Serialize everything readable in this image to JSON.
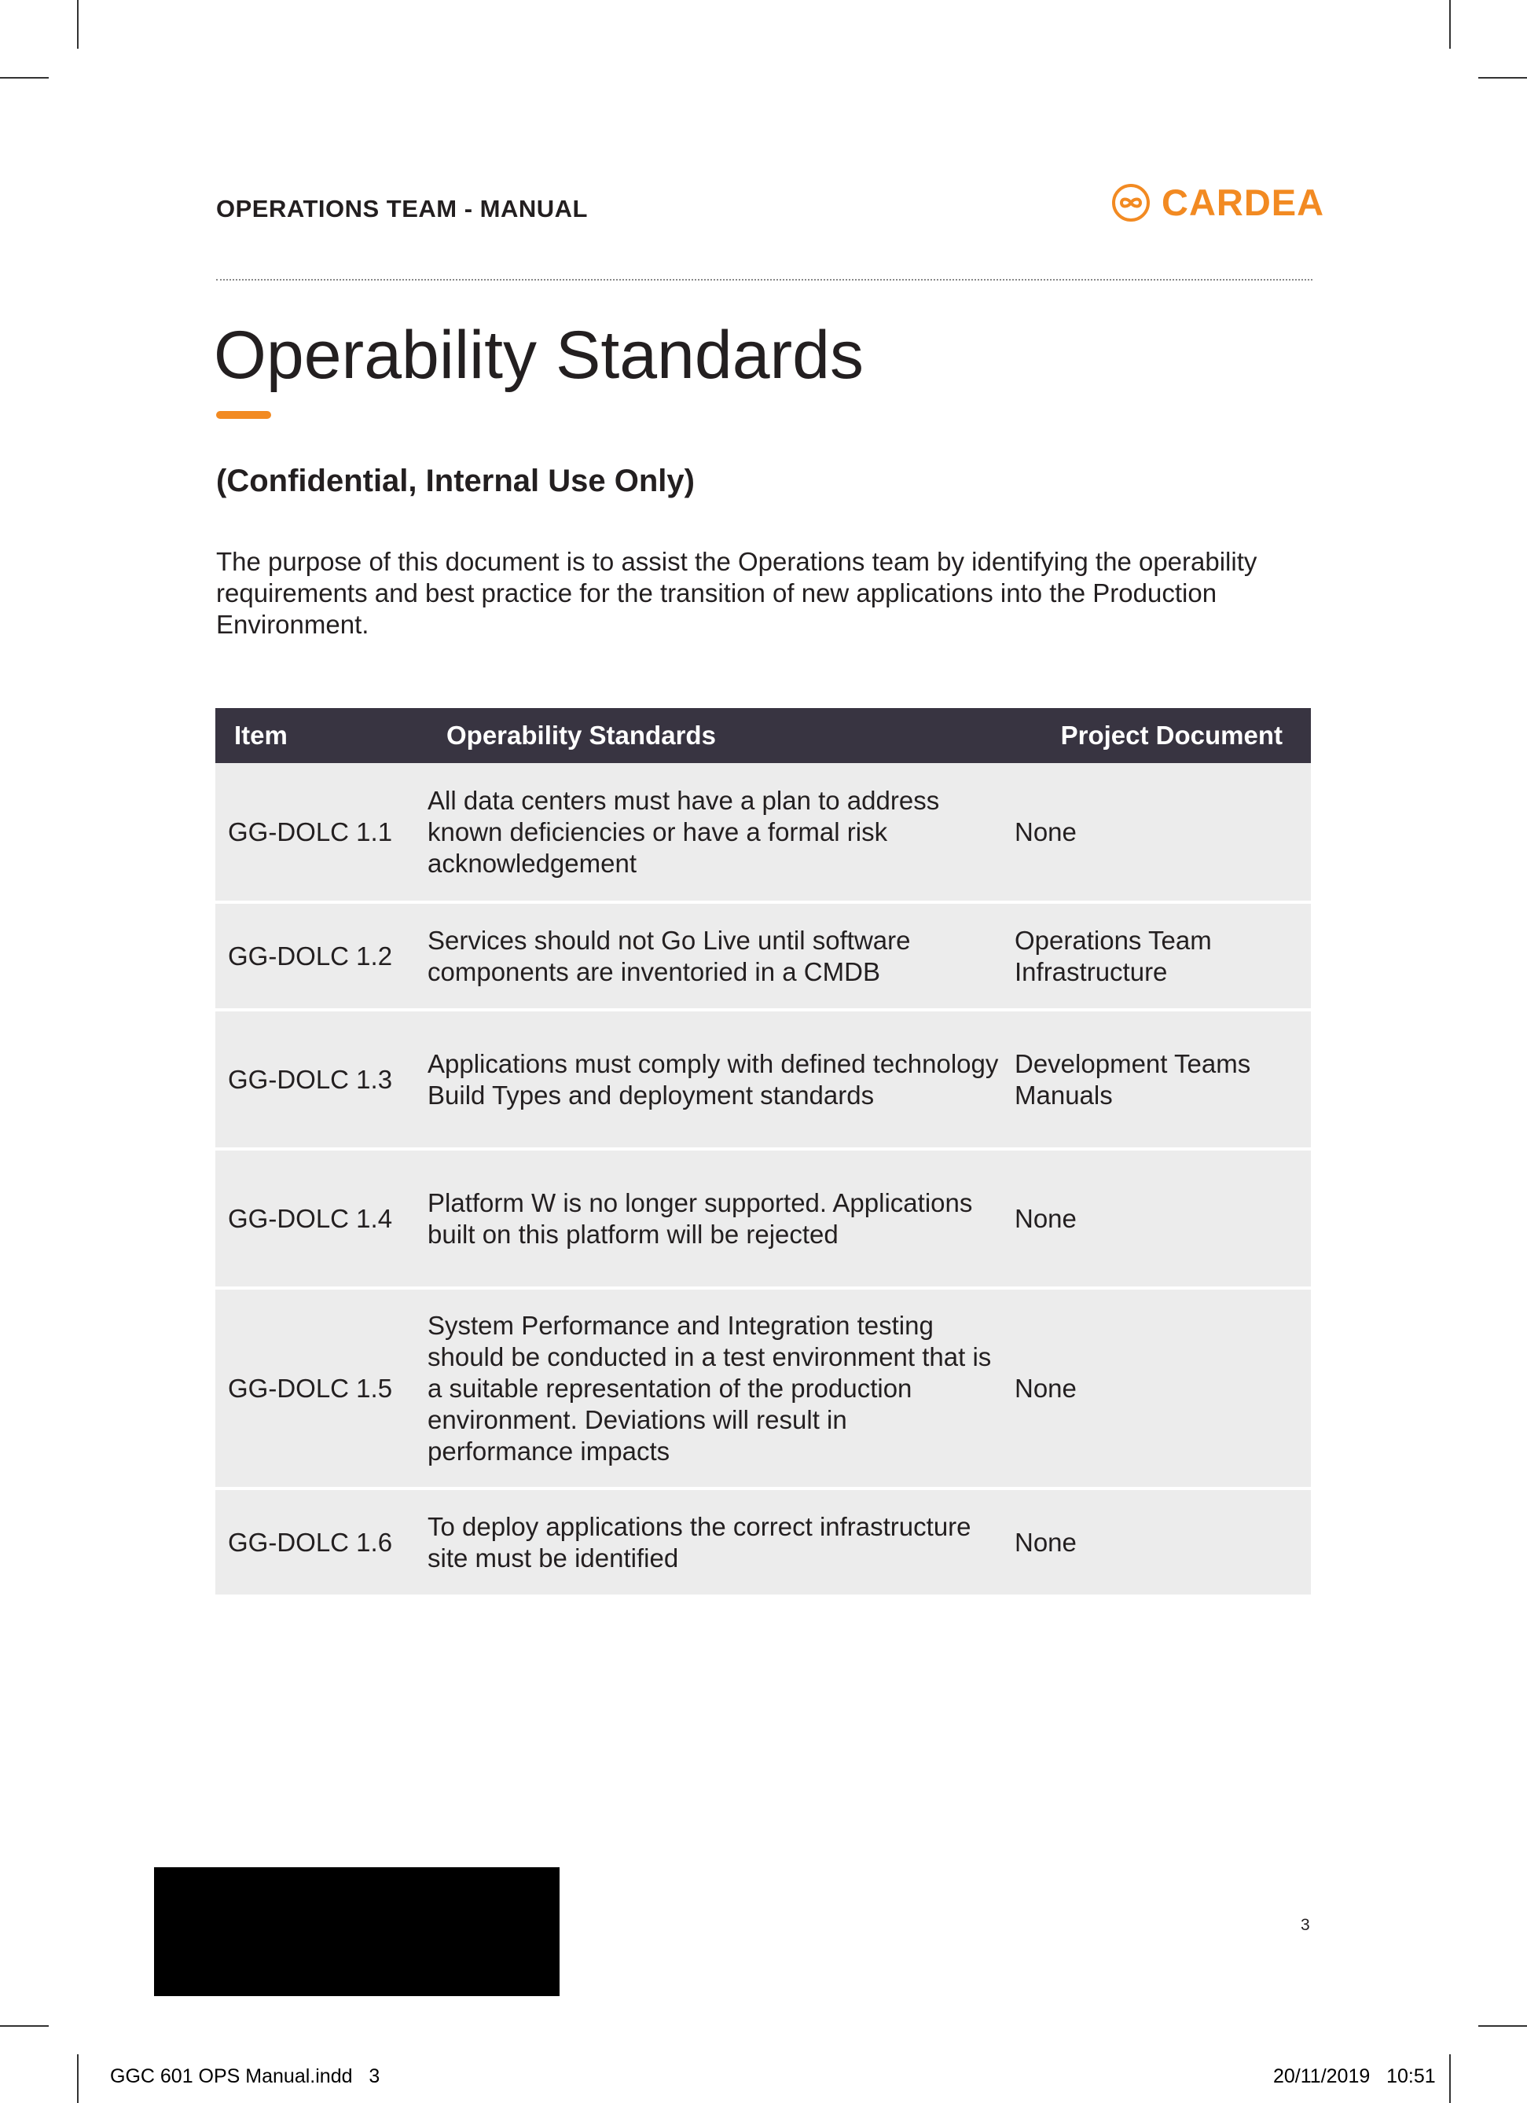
{
  "header": {
    "manual_title": "OPERATIONS TEAM - MANUAL",
    "brand_name": "CARDEA",
    "brand_color": "#f28a22"
  },
  "page": {
    "title": "Operability Standards",
    "subtitle": "(Confidential, Internal Use Only)",
    "intro": "The purpose of this document is to assist the Operations team by identifying the operability requirements and best practice for the transition of new applications into the Production Environment."
  },
  "table": {
    "headers": [
      "Item",
      "Operability Standards",
      "Project Document"
    ],
    "rows": [
      [
        "GG-DOLC 1.1",
        "All data centers must have a plan to address known deficiencies or have a formal risk acknowledgement",
        "None"
      ],
      [
        "GG-DOLC 1.2",
        "Services should not Go Live until software components are inventoried in a CMDB",
        "Operations Team Infrastructure"
      ],
      [
        "GG-DOLC 1.3",
        "Applications must comply with defined technology Build Types and deployment standards",
        "Development Teams Manuals"
      ],
      [
        "GG-DOLC 1.4",
        "Platform W is no longer supported. Applications built on this platform will be rejected",
        "None"
      ],
      [
        "GG-DOLC 1.5",
        "System Performance and Integration testing should be conducted in a test environment that is a suitable representation of the production environment. Deviations will result in performance impacts",
        "None"
      ],
      [
        "GG-DOLC 1.6",
        "To deploy applications the correct infrastructure site must be identified",
        "None"
      ]
    ]
  },
  "footer": {
    "page_number": "3",
    "file_slug": "GGC 601 OPS Manual.indd   3",
    "date_slug": "20/11/2019   10:51"
  }
}
